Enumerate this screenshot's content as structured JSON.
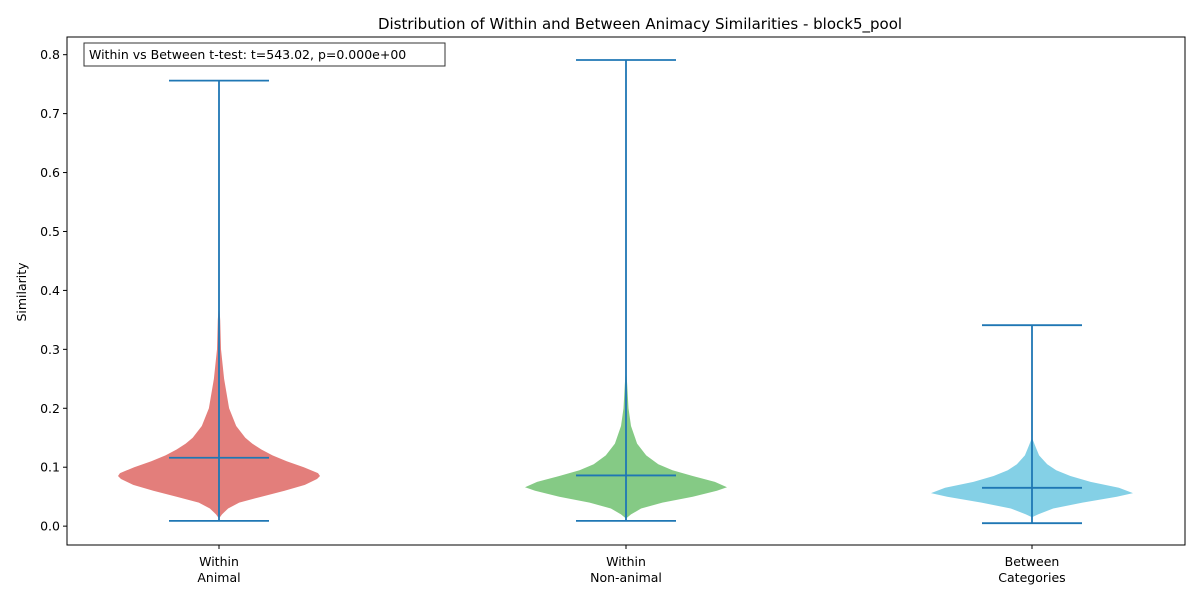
{
  "chart_data": {
    "type": "violin",
    "title": "Distribution of Within and Between Animacy Similarities - block5_pool",
    "ylabel": "Similarity",
    "xlabel": "",
    "ylim": [
      -0.032,
      0.83
    ],
    "yticks": [
      0.0,
      0.1,
      0.2,
      0.3,
      0.4,
      0.5,
      0.6,
      0.7,
      0.8
    ],
    "ytick_labels": [
      "0.0",
      "0.1",
      "0.2",
      "0.3",
      "0.4",
      "0.5",
      "0.6",
      "0.7",
      "0.8"
    ],
    "grid": false,
    "annotation": "Within vs Between t-test: t=543.02, p=0.000e+00",
    "annotation_position": "top-left",
    "stats_color": "#1f77b4",
    "series": [
      {
        "label_line1": "Within",
        "label_line2": "Animal",
        "color": "#d9534f",
        "min": 0.009,
        "max": 0.756,
        "mean": 0.116,
        "profile": [
          [
            0.013,
            0
          ],
          [
            0.02,
            0.03
          ],
          [
            0.03,
            0.09
          ],
          [
            0.04,
            0.2
          ],
          [
            0.05,
            0.42
          ],
          [
            0.06,
            0.65
          ],
          [
            0.07,
            0.85
          ],
          [
            0.08,
            0.97
          ],
          [
            0.085,
            1.0
          ],
          [
            0.09,
            0.98
          ],
          [
            0.1,
            0.84
          ],
          [
            0.11,
            0.67
          ],
          [
            0.12,
            0.53
          ],
          [
            0.13,
            0.42
          ],
          [
            0.14,
            0.33
          ],
          [
            0.15,
            0.26
          ],
          [
            0.17,
            0.17
          ],
          [
            0.2,
            0.1
          ],
          [
            0.25,
            0.05
          ],
          [
            0.3,
            0.02
          ],
          [
            0.35,
            0.012
          ],
          [
            0.38,
            0
          ]
        ]
      },
      {
        "label_line1": "Within",
        "label_line2": "Non-animal",
        "color": "#5cb85c",
        "min": 0.009,
        "max": 0.791,
        "mean": 0.086,
        "profile": [
          [
            0.013,
            0
          ],
          [
            0.02,
            0.05
          ],
          [
            0.03,
            0.15
          ],
          [
            0.04,
            0.36
          ],
          [
            0.05,
            0.66
          ],
          [
            0.06,
            0.9
          ],
          [
            0.066,
            1.0
          ],
          [
            0.075,
            0.88
          ],
          [
            0.085,
            0.66
          ],
          [
            0.095,
            0.46
          ],
          [
            0.105,
            0.32
          ],
          [
            0.12,
            0.2
          ],
          [
            0.14,
            0.11
          ],
          [
            0.17,
            0.05
          ],
          [
            0.2,
            0.025
          ],
          [
            0.24,
            0.012
          ],
          [
            0.27,
            0
          ]
        ]
      },
      {
        "label_line1": "Between",
        "label_line2": "Categories",
        "color": "#5bc0de",
        "min": 0.005,
        "max": 0.341,
        "mean": 0.065,
        "profile": [
          [
            0.015,
            0
          ],
          [
            0.02,
            0.06
          ],
          [
            0.03,
            0.21
          ],
          [
            0.04,
            0.5
          ],
          [
            0.05,
            0.84
          ],
          [
            0.056,
            1.0
          ],
          [
            0.065,
            0.86
          ],
          [
            0.075,
            0.58
          ],
          [
            0.085,
            0.38
          ],
          [
            0.095,
            0.24
          ],
          [
            0.105,
            0.15
          ],
          [
            0.12,
            0.07
          ],
          [
            0.135,
            0.035
          ],
          [
            0.15,
            0
          ]
        ]
      }
    ]
  }
}
